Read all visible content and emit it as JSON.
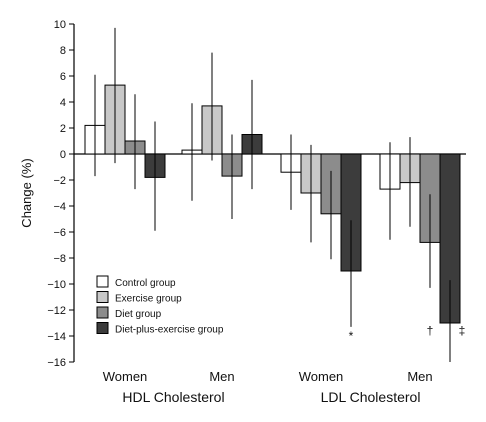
{
  "chart_data": {
    "type": "bar",
    "ylabel": "Change (%)",
    "ylim": [
      -16,
      10
    ],
    "yticks": [
      10,
      8,
      6,
      4,
      2,
      0,
      -2,
      -4,
      -6,
      -8,
      -10,
      -12,
      -14,
      -16
    ],
    "categories": [
      "Women",
      "Men",
      "Women",
      "Men"
    ],
    "category_groups": [
      {
        "label": "HDL Cholesterol",
        "categories": [
          "Women",
          "Men"
        ]
      },
      {
        "label": "LDL Cholesterol",
        "categories": [
          "Women",
          "Men"
        ]
      }
    ],
    "series": [
      {
        "name": "Control group",
        "color": "#ffffff",
        "values": [
          2.2,
          0.3,
          -1.4,
          -2.7
        ],
        "error_low": [
          -1.7,
          -3.6,
          -4.3,
          -6.6
        ],
        "error_high": [
          6.1,
          3.9,
          1.5,
          0.9
        ]
      },
      {
        "name": "Exercise group",
        "color": "#c8c8c8",
        "values": [
          5.3,
          3.7,
          -3.0,
          -2.2
        ],
        "error_low": [
          -0.7,
          -0.5,
          -6.8,
          -5.6
        ],
        "error_high": [
          9.7,
          7.8,
          0.7,
          1.3
        ]
      },
      {
        "name": "Diet group",
        "color": "#8c8c8c",
        "values": [
          1.0,
          -1.7,
          -4.6,
          -6.8
        ],
        "error_low": [
          -2.7,
          -5.0,
          -8.1,
          -10.3
        ],
        "error_high": [
          4.6,
          1.5,
          -1.3,
          -3.1
        ]
      },
      {
        "name": "Diet-plus-exercise group",
        "color": "#3c3c3c",
        "values": [
          -1.8,
          1.5,
          -9.0,
          -13.0
        ],
        "error_low": [
          -5.9,
          -2.7,
          -13.3,
          -16.0
        ],
        "error_high": [
          2.5,
          5.7,
          -5.1,
          -9.7
        ]
      }
    ],
    "annotations": [
      {
        "text": "*",
        "category_index": 2,
        "series_index": 3
      },
      {
        "text": "†",
        "category_index": 3,
        "series_index": 2
      },
      {
        "text": "‡",
        "category_index": 3,
        "series_index": 3
      }
    ],
    "legend_position": "bottom-left",
    "grid": false
  }
}
